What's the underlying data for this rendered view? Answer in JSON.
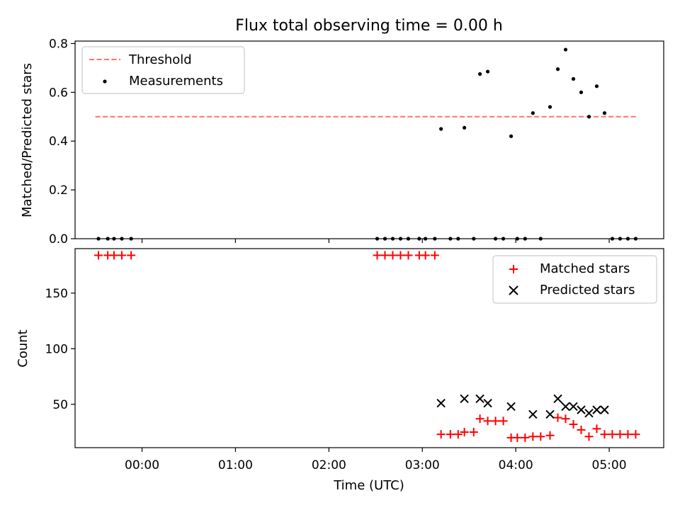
{
  "chart_data": [
    {
      "type": "scatter",
      "title": "Flux total observing time = 0.00 h",
      "xlabel": "",
      "ylabel": "Matched/Predicted stars",
      "ylim": [
        0,
        0.81
      ],
      "xlim": [
        "23:17",
        "05:35"
      ],
      "yticks": [
        "0.0",
        "0.2",
        "0.4",
        "0.6",
        "0.8"
      ],
      "legend_position": "top-left",
      "threshold": {
        "name": "Threshold",
        "value": 0.5,
        "x_range": [
          "23:30",
          "05:18"
        ],
        "color": "#ff7070",
        "style": "dashed"
      },
      "series": [
        {
          "name": "Measurements",
          "marker": "dot",
          "color": "#000000",
          "points": [
            [
              "23:32",
              0.0
            ],
            [
              "23:38",
              0.0
            ],
            [
              "23:42",
              0.0
            ],
            [
              "23:47",
              0.0
            ],
            [
              "23:53",
              0.0
            ],
            [
              "02:31",
              0.0
            ],
            [
              "02:36",
              0.0
            ],
            [
              "02:41",
              0.0
            ],
            [
              "02:46",
              0.0
            ],
            [
              "02:51",
              0.0
            ],
            [
              "02:58",
              0.0
            ],
            [
              "03:02",
              0.0
            ],
            [
              "03:08",
              0.0
            ],
            [
              "03:12",
              0.45
            ],
            [
              "03:18",
              0.0
            ],
            [
              "03:23",
              0.0
            ],
            [
              "03:27",
              0.455
            ],
            [
              "03:33",
              0.0
            ],
            [
              "03:37",
              0.675
            ],
            [
              "03:42",
              0.685
            ],
            [
              "03:47",
              0.0
            ],
            [
              "03:52",
              0.0
            ],
            [
              "03:57",
              0.42
            ],
            [
              "04:01",
              0.0
            ],
            [
              "04:06",
              0.0
            ],
            [
              "04:11",
              0.515
            ],
            [
              "04:16",
              0.0
            ],
            [
              "04:22",
              0.54
            ],
            [
              "04:27",
              0.695
            ],
            [
              "04:32",
              0.775
            ],
            [
              "04:37",
              0.655
            ],
            [
              "04:42",
              0.6
            ],
            [
              "04:47",
              0.5
            ],
            [
              "04:52",
              0.625
            ],
            [
              "04:57",
              0.515
            ],
            [
              "05:02",
              0.0
            ],
            [
              "05:07",
              0.0
            ],
            [
              "05:12",
              0.0
            ],
            [
              "05:17",
              0.0
            ]
          ]
        }
      ]
    },
    {
      "type": "scatter",
      "title": "",
      "xlabel": "Time (UTC)",
      "ylabel": "Count",
      "ylim": [
        11,
        190
      ],
      "xlim": [
        "23:17",
        "05:35"
      ],
      "xticks": [
        "00:00",
        "01:00",
        "02:00",
        "03:00",
        "04:00",
        "05:00"
      ],
      "yticks": [
        "50",
        "100",
        "150"
      ],
      "legend_position": "top-right",
      "series": [
        {
          "name": "Matched stars",
          "marker": "plus",
          "color": "#ff0000",
          "points": [
            [
              "23:32",
              184
            ],
            [
              "23:38",
              184
            ],
            [
              "23:42",
              184
            ],
            [
              "23:47",
              184
            ],
            [
              "23:53",
              184
            ],
            [
              "02:31",
              184
            ],
            [
              "02:36",
              184
            ],
            [
              "02:41",
              184
            ],
            [
              "02:46",
              184
            ],
            [
              "02:51",
              184
            ],
            [
              "02:58",
              184
            ],
            [
              "03:02",
              184
            ],
            [
              "03:08",
              184
            ],
            [
              "03:12",
              23
            ],
            [
              "03:18",
              23
            ],
            [
              "03:23",
              23
            ],
            [
              "03:27",
              25
            ],
            [
              "03:33",
              25
            ],
            [
              "03:37",
              37
            ],
            [
              "03:42",
              35
            ],
            [
              "03:47",
              35
            ],
            [
              "03:52",
              35
            ],
            [
              "03:57",
              20
            ],
            [
              "04:01",
              20
            ],
            [
              "04:06",
              20
            ],
            [
              "04:11",
              21
            ],
            [
              "04:16",
              21
            ],
            [
              "04:22",
              22
            ],
            [
              "04:27",
              38
            ],
            [
              "04:32",
              37
            ],
            [
              "04:37",
              32
            ],
            [
              "04:42",
              27
            ],
            [
              "04:47",
              21
            ],
            [
              "04:52",
              28
            ],
            [
              "04:57",
              23
            ],
            [
              "05:02",
              23
            ],
            [
              "05:07",
              23
            ],
            [
              "05:12",
              23
            ],
            [
              "05:17",
              23
            ]
          ]
        },
        {
          "name": "Predicted stars",
          "marker": "x",
          "color": "#000000",
          "points": [
            [
              "03:12",
              51
            ],
            [
              "03:27",
              55
            ],
            [
              "03:37",
              55
            ],
            [
              "03:42",
              51
            ],
            [
              "03:57",
              48
            ],
            [
              "04:11",
              41
            ],
            [
              "04:22",
              41
            ],
            [
              "04:27",
              55
            ],
            [
              "04:32",
              48
            ],
            [
              "04:37",
              48
            ],
            [
              "04:42",
              45
            ],
            [
              "04:47",
              42
            ],
            [
              "04:52",
              45
            ],
            [
              "04:57",
              45
            ]
          ]
        }
      ]
    }
  ]
}
